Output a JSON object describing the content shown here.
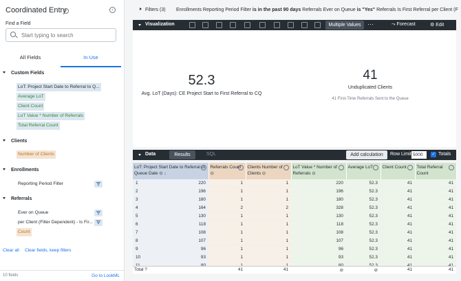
{
  "sidebar": {
    "title": "Coordinated Entry",
    "find_label": "Find a Field",
    "search_placeholder": "Start typing to search",
    "tab_all": "All Fields",
    "tab_in_use": "In Use",
    "sections": {
      "custom": "Custom Fields",
      "clients": "Clients",
      "enrollments": "Enrollments",
      "referrals": "Referrals"
    },
    "custom_fields": [
      "LoT: Project Start Date to Referral to Q...",
      "Average LoT",
      "Client Count",
      "LoT Value * Number of Referrals",
      "Total Referral Count"
    ],
    "clients_fields": [
      "Number of Clients"
    ],
    "enrollments_fields": [
      "Reporting Period Filter"
    ],
    "referrals_fields": [
      "Ever on Queue",
      "per Client (Filter Dependent) - Is Fir...",
      "Count"
    ],
    "clear_all": "Clear all",
    "clear_keep": "Clear fields, keep filters",
    "field_count": "10 fields",
    "go_to_lookml": "Go to LookML"
  },
  "filters": {
    "label": "Filters (3)",
    "summary_parts": [
      {
        "text": "Enrollments Reporting Period Filter ",
        "bold": false
      },
      {
        "text": "is in the past 90 days",
        "bold": true
      },
      {
        "text": "    Referrals Ever on Queue ",
        "bold": false
      },
      {
        "text": "is \"Yes\"",
        "bold": true
      },
      {
        "text": "    Referrals Is First Referral per Client (F",
        "bold": false
      }
    ]
  },
  "visualization": {
    "label": "Visualization",
    "multiple_values": "Multiple Values",
    "more": "···",
    "forecast": "Forecast",
    "edit": "Edit",
    "tile1_value": "52.3",
    "tile1_caption": "Avg. LoT (Days): CE Project Start to First Referral to CQ",
    "tile2_value": "41",
    "tile2_caption": "Unduplicated Clients",
    "tile2_sub": "41  First-Time Referrals Sent to the Queue"
  },
  "data_panel": {
    "label": "Data",
    "results": "Results",
    "sql": "SQL",
    "add_calculation": "Add calculation",
    "row_limit_label": "Row Limit",
    "row_limit_value": "5000",
    "totals": "Totals"
  },
  "table": {
    "columns": [
      {
        "label": "LoT: Project Start Date to Referral to Queue Date ⊙ ↓",
        "kind": "dim"
      },
      {
        "label": "Referrals Count ⊙",
        "kind": "cust"
      },
      {
        "label": "Clients Number of Clients ⊙",
        "kind": "cust"
      },
      {
        "label": "LoT Value * Number of Referrals ⊙",
        "kind": "meas"
      },
      {
        "label": "Average LoT",
        "kind": "meas"
      },
      {
        "label": "Client Count",
        "kind": "meas"
      },
      {
        "label": "Total Referral Count",
        "kind": "meas"
      }
    ],
    "rows": [
      [
        "1",
        "220",
        "1",
        "1",
        "220",
        "52.3",
        "41",
        "41"
      ],
      [
        "2",
        "196",
        "1",
        "1",
        "196",
        "52.3",
        "41",
        "41"
      ],
      [
        "3",
        "180",
        "1",
        "1",
        "180",
        "52.3",
        "41",
        "41"
      ],
      [
        "4",
        "164",
        "2",
        "2",
        "328",
        "52.3",
        "41",
        "41"
      ],
      [
        "5",
        "130",
        "1",
        "1",
        "130",
        "52.3",
        "41",
        "41"
      ],
      [
        "6",
        "118",
        "1",
        "1",
        "118",
        "52.3",
        "41",
        "41"
      ],
      [
        "7",
        "108",
        "1",
        "1",
        "108",
        "52.3",
        "41",
        "41"
      ],
      [
        "8",
        "107",
        "1",
        "1",
        "107",
        "52.3",
        "41",
        "41"
      ],
      [
        "9",
        "96",
        "1",
        "1",
        "96",
        "52.3",
        "41",
        "41"
      ],
      [
        "10",
        "93",
        "1",
        "1",
        "93",
        "52.3",
        "41",
        "41"
      ],
      [
        "11",
        "80",
        "1",
        "1",
        "80",
        "52.3",
        "41",
        "41"
      ]
    ],
    "totals": {
      "label": "Total",
      "values": [
        "",
        "41",
        "41",
        "⊘",
        "⊘",
        "41",
        "41"
      ]
    }
  }
}
